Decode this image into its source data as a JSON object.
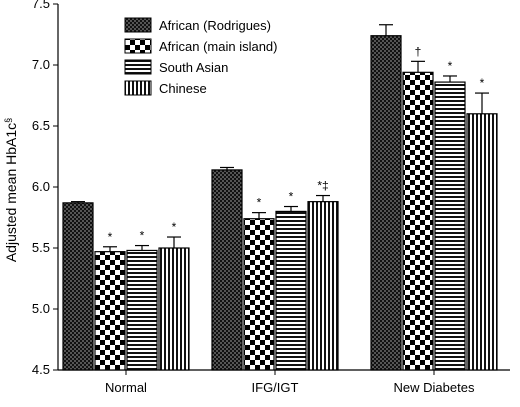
{
  "chart_data": {
    "type": "bar",
    "title": "",
    "xlabel": "",
    "ylabel": "Adjusted mean HbA1c",
    "ylabel_superscript": "§",
    "ylim": [
      4.5,
      7.5
    ],
    "yticks": [
      "4.5",
      "5.0",
      "5.5",
      "6.0",
      "6.5",
      "7.0",
      "7.5"
    ],
    "grid": false,
    "legend_position": "top-left",
    "categories": [
      "Normal",
      "IFG/IGT",
      "New Diabetes"
    ],
    "series": [
      {
        "name": "African (Rodrigues)",
        "pattern": "checker-dense",
        "values": [
          5.87,
          6.14,
          7.24
        ],
        "errors": [
          0.01,
          0.02,
          0.09
        ],
        "annotations": [
          "",
          "",
          ""
        ]
      },
      {
        "name": "African (main island)",
        "pattern": "checker-large",
        "values": [
          5.47,
          5.74,
          6.94
        ],
        "errors": [
          0.04,
          0.05,
          0.09
        ],
        "annotations": [
          "*",
          "*",
          "†"
        ]
      },
      {
        "name": "South Asian",
        "pattern": "horizontal-stripes",
        "values": [
          5.48,
          5.8,
          6.86
        ],
        "errors": [
          0.04,
          0.04,
          0.05
        ],
        "annotations": [
          "*",
          "*",
          "*"
        ]
      },
      {
        "name": "Chinese",
        "pattern": "vertical-stripes",
        "values": [
          5.5,
          5.88,
          6.6
        ],
        "errors": [
          0.09,
          0.05,
          0.17
        ],
        "annotations": [
          "*",
          "*‡",
          "*"
        ]
      }
    ]
  }
}
